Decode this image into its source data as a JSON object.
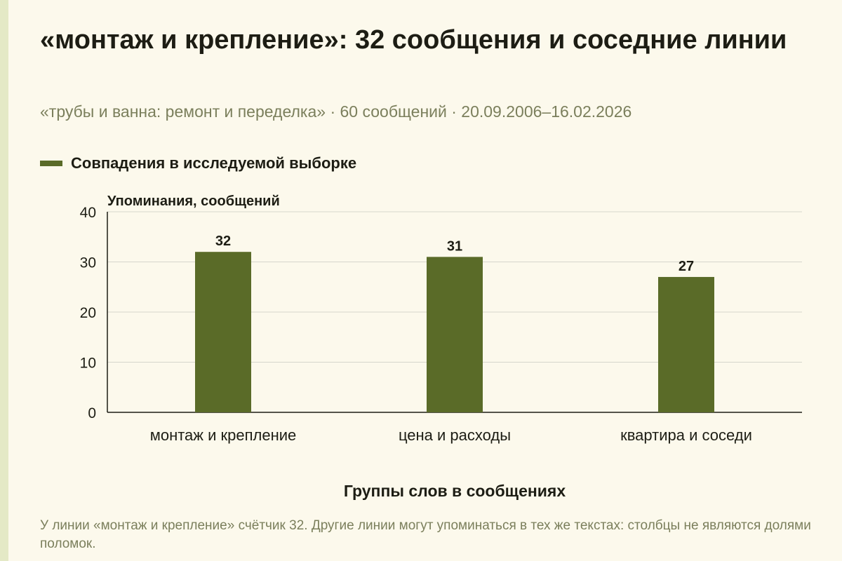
{
  "title": "«монтаж и крепление»: 32 сообщения и соседние линии",
  "subtitle": "«трубы и ванна: ремонт и переделка» · 60 сообщений · 20.09.2006–16.02.2026",
  "footnote": "У линии «монтаж и крепление» счётчик 32. Другие линии могут упоминаться в тех же текстах: столбцы не являются долями поломок.",
  "colors": {
    "bar": "#5a6b28",
    "background": "#fcf9ec"
  },
  "chart_data": {
    "type": "bar",
    "categories": [
      "монтаж и крепление",
      "цена и расходы",
      "квартира и соседи"
    ],
    "series": [
      {
        "name": "Совпадения в исследуемой выборке",
        "values": [
          32,
          31,
          27
        ]
      }
    ],
    "ylabel": "Упоминания, сообщений",
    "xlabel": "Группы слов в сообщениях",
    "ylim": [
      0,
      40
    ],
    "yticks": [
      0,
      10,
      20,
      30,
      40
    ],
    "grid": true,
    "legend": "top-left",
    "data_labels": true
  }
}
